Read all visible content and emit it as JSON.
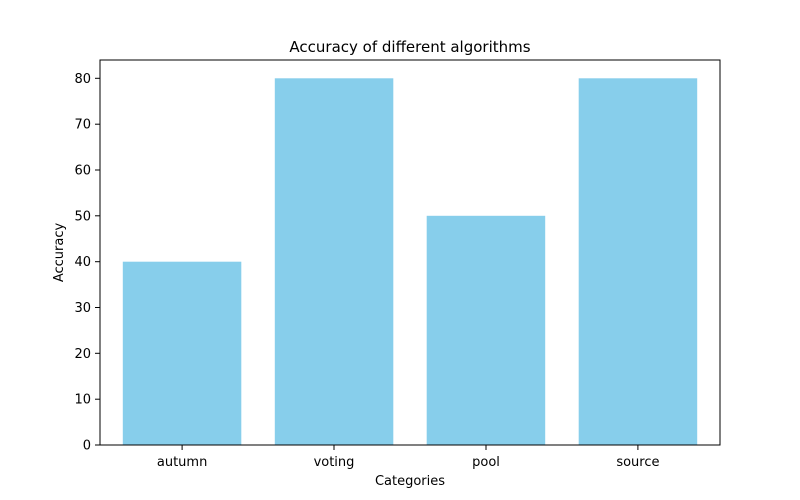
{
  "chart_data": {
    "type": "bar",
    "title": "Accuracy of different algorithms",
    "xlabel": "Categories",
    "ylabel": "Accuracy",
    "categories": [
      "autumn",
      "voting",
      "pool",
      "source"
    ],
    "values": [
      40,
      80,
      50,
      80
    ],
    "ylim": [
      0,
      84
    ],
    "yticks": [
      0,
      10,
      20,
      30,
      40,
      50,
      60,
      70,
      80
    ],
    "grid": false,
    "legend": "none",
    "colors": {
      "bar": "#87CEEB",
      "axis": "#000000",
      "background": "#ffffff"
    }
  }
}
